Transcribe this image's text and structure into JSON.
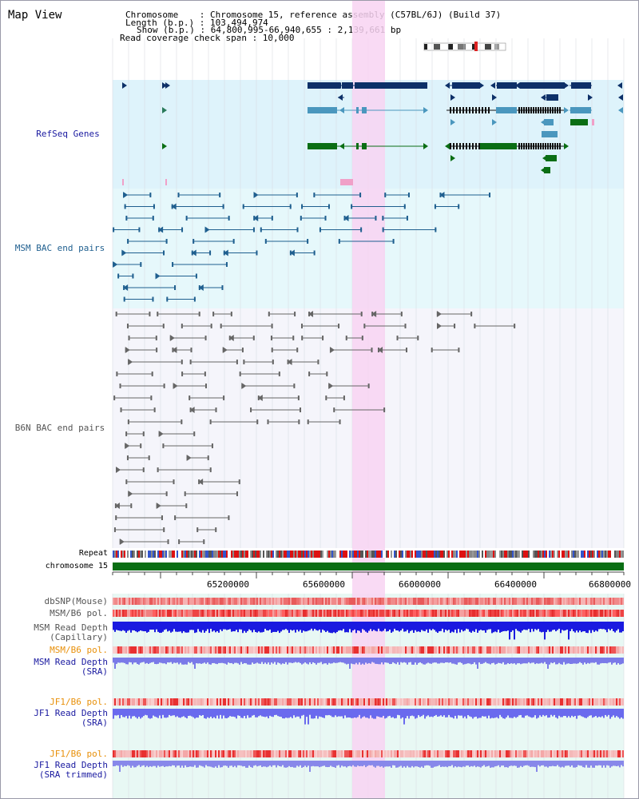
{
  "title": "Map View",
  "header": {
    "chromosome": "Chromosome    : Chromosome 15, reference assembly (C57BL/6J) (Build 37)",
    "length": "Length (b.p.) : 103,494,974",
    "show": "Show (b.p.) : 64,800,995-66,940,655 : 2,139,661 bp",
    "coverage": "Read coverage check span : 10,000"
  },
  "tracks": {
    "refseq": "RefSeq Genes",
    "msm_bac": "MSM BAC end pairs",
    "b6n_bac": "B6N BAC end pairs",
    "repeat": "Repeat",
    "chromosome": "chromosome 15"
  },
  "axis": {
    "ticks": [
      "65200000",
      "65600000",
      "66000000",
      "66400000",
      "66800000"
    ]
  },
  "lower_tracks": {
    "dbsnp": "dbSNP(Mouse)",
    "msm_b6_pol": "MSM/B6 pol.",
    "msm_depth_cap_1": "MSM Read Depth",
    "msm_depth_cap_2": "(Capillary)",
    "msm_b6_pol2": "MSM/B6 pol.",
    "msm_depth_sra_1": "MSM Read Depth",
    "msm_depth_sra_2": "(SRA)",
    "jf1_b6_pol": "JF1/B6 pol.",
    "jf1_depth_sra_1": "JF1 Read Depth",
    "jf1_depth_sra_2": "(SRA)",
    "jf1_b6_pol2": "JF1/B6 pol.",
    "jf1_depth_trim_1": "JF1 Read Depth",
    "jf1_depth_trim_2": "(SRA trimmed)"
  },
  "colors": {
    "refseq_label": "#1a1aa0",
    "msm_label": "#1f5f8f",
    "b6n_label": "#555555",
    "pol_orange": "#e8900a",
    "depth_blue": "#1a1aa0",
    "dbsnp_gray": "#555555",
    "refseq_bg": "#def3fb",
    "msm_bg": "#e6f8fb",
    "b6n_bg": "#f5f5fb",
    "highlight": "#f8d4f2",
    "gene_navy": "#0d3068",
    "gene_blue": "#4a97be",
    "gene_green": "#0a6e14",
    "chrom_green": "#0a6e14"
  }
}
